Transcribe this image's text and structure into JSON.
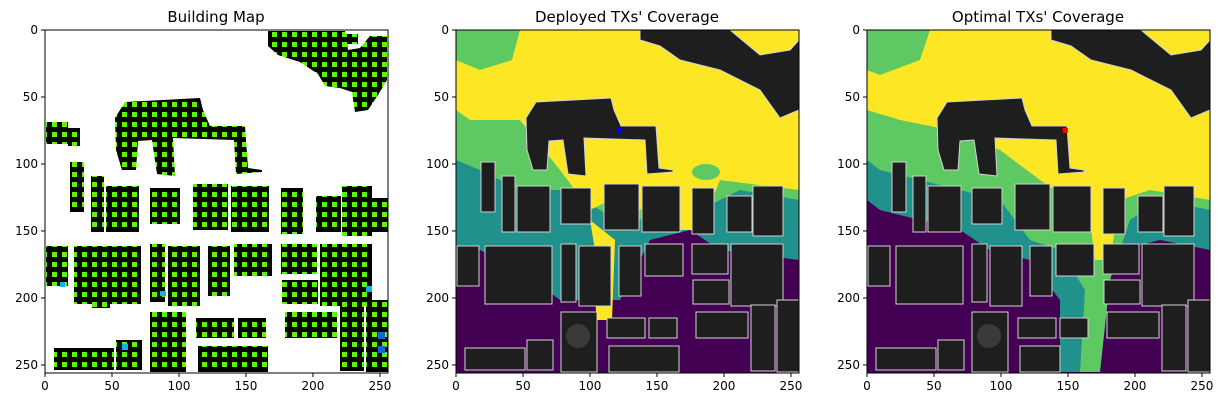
{
  "chart_data": [
    {
      "type": "heatmap",
      "title": "Building Map",
      "x_ticks": [
        0,
        50,
        100,
        150,
        200,
        250
      ],
      "y_ticks": [
        0,
        50,
        100,
        150,
        200,
        250
      ],
      "xlim": [
        0,
        256
      ],
      "ylim": [
        256,
        0
      ],
      "colors": {
        "background": "#ffffff",
        "building": "#000000",
        "grid": "#5ef20c",
        "marker_cyan": "#0ab4e6",
        "marker_blue": "#1466d2"
      }
    },
    {
      "type": "heatmap",
      "title": "Deployed TXs' Coverage",
      "x_ticks": [
        0,
        50,
        100,
        150,
        200,
        250
      ],
      "y_ticks": [
        0,
        50,
        100,
        150,
        200,
        250
      ],
      "xlim": [
        0,
        256
      ],
      "ylim": [
        256,
        0
      ],
      "tx_marker": {
        "x": 122,
        "y": 75,
        "color": "#0000ff"
      },
      "colors": {
        "low": "#440154",
        "mid_low": "#21918c",
        "mid_high": "#5ec962",
        "high": "#fde725",
        "building": "#1e1e1e",
        "outline": "#d2d2d2"
      }
    },
    {
      "type": "heatmap",
      "title": "Optimal TXs' Coverage",
      "x_ticks": [
        0,
        50,
        100,
        150,
        200,
        250
      ],
      "y_ticks": [
        0,
        50,
        100,
        150,
        200,
        250
      ],
      "xlim": [
        0,
        256
      ],
      "ylim": [
        256,
        0
      ],
      "tx_marker": {
        "x": 148,
        "y": 75,
        "color": "#ff0000"
      },
      "colors": {
        "low": "#440154",
        "mid_low": "#21918c",
        "mid_high": "#5ec962",
        "high": "#fde725",
        "building": "#1e1e1e",
        "outline": "#d2d2d2"
      }
    }
  ]
}
